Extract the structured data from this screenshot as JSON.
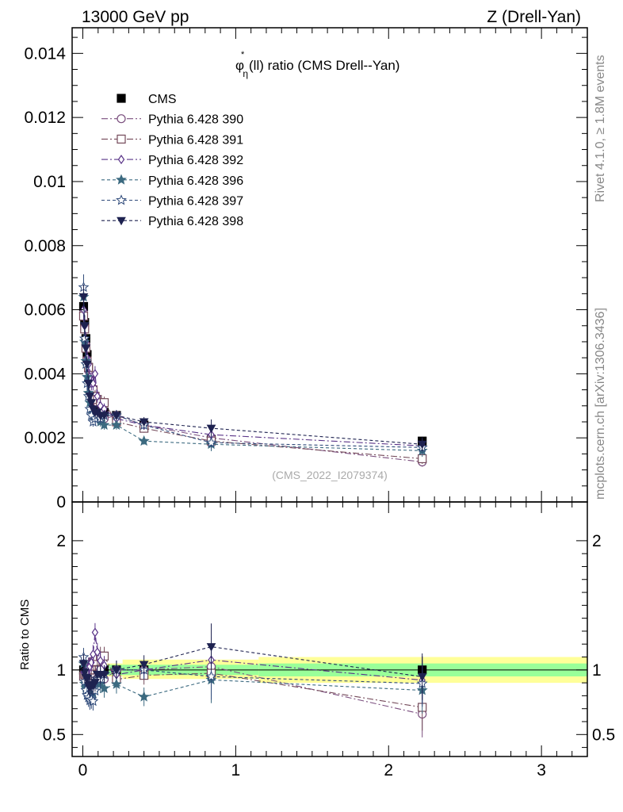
{
  "header": {
    "left": "13000 GeV pp",
    "right": "Z (Drell-Yan)"
  },
  "side_labels": {
    "rivet": "Rivet 4.1.0, ≥ 1.8M events",
    "mcplots": "mcplots.cern.ch [arXiv:1306.3436]"
  },
  "plot_title": {
    "sym": "φ",
    "sup": "*",
    "sub": "η",
    "rest": "(ll) ratio (CMS Drell--Yan)"
  },
  "watermark": "(CMS_2022_I2079374)",
  "ratio_ylabel": "Ratio to CMS",
  "chart_data": {
    "type": "scatter",
    "xlim": [
      -0.07,
      3.3
    ],
    "main": {
      "ylim": [
        0,
        0.0148
      ],
      "yticks": [
        {
          "v": 0,
          "label": "0"
        },
        {
          "v": 0.002,
          "label": "0.002"
        },
        {
          "v": 0.004,
          "label": "0.004"
        },
        {
          "v": 0.006,
          "label": "0.006"
        },
        {
          "v": 0.008,
          "label": "0.008"
        },
        {
          "v": 0.01,
          "label": "0.01"
        },
        {
          "v": 0.012,
          "label": "0.012"
        },
        {
          "v": 0.014,
          "label": "0.014"
        }
      ]
    },
    "ratio": {
      "ylim": [
        0.33,
        2.3
      ],
      "yticks": [
        {
          "v": 0.5,
          "label": "0.5"
        },
        {
          "v": 1,
          "label": "1"
        },
        {
          "v": 2,
          "label": "2"
        }
      ],
      "bands": [
        {
          "x0": 0,
          "x1": 0.26,
          "y_in": [
            0.96,
            1.04
          ],
          "y_out": [
            0.95,
            1.05
          ]
        },
        {
          "x0": 0.26,
          "x1": 1.15,
          "y_in": [
            0.96,
            1.04
          ],
          "y_out": [
            0.93,
            1.08
          ]
        },
        {
          "x0": 1.15,
          "x1": 3.3,
          "y_in": [
            0.95,
            1.05
          ],
          "y_out": [
            0.9,
            1.1
          ]
        }
      ]
    },
    "xticks": [
      {
        "v": 0,
        "label": "0"
      },
      {
        "v": 1,
        "label": "1"
      },
      {
        "v": 2,
        "label": "2"
      },
      {
        "v": 3,
        "label": "3"
      }
    ],
    "x": [
      0.005,
      0.012,
      0.02,
      0.028,
      0.037,
      0.046,
      0.056,
      0.067,
      0.08,
      0.095,
      0.115,
      0.14,
      0.22,
      0.4,
      0.84,
      2.22
    ],
    "series": [
      {
        "name": "CMS",
        "color": "#000000",
        "marker": "square-filled",
        "dash": "",
        "values": [
          0.0061,
          0.0056,
          0.0051,
          0.0046,
          0.0042,
          0.0038,
          0.0035,
          0.0033,
          0.0031,
          0.0029,
          0.0028,
          0.0028,
          0.0027,
          0.0024,
          0.00195,
          0.0019
        ]
      },
      {
        "name": "Pythia 6.428 390",
        "color": "#7a4e7e",
        "marker": "circle-open",
        "dash": "8,3,2,3",
        "values": [
          0.0059,
          0.0054,
          0.0049,
          0.0044,
          0.0041,
          0.0037,
          0.0034,
          0.0034,
          0.0032,
          0.0031,
          0.0028,
          0.0026,
          0.0027,
          0.0024,
          0.002,
          0.00125
        ]
      },
      {
        "name": "Pythia 6.428 391",
        "color": "#744a5a",
        "marker": "square-open",
        "dash": "8,3,2,3",
        "values": [
          0.0058,
          0.0054,
          0.0048,
          0.0044,
          0.0042,
          0.0038,
          0.0036,
          0.0035,
          0.0033,
          0.0032,
          0.0031,
          0.0031,
          0.0025,
          0.0023,
          0.0019,
          0.00135
        ]
      },
      {
        "name": "Pythia 6.428 392",
        "color": "#5a3488",
        "marker": "diamond-open",
        "dash": "8,3,2,3",
        "values": [
          0.006,
          0.0055,
          0.005,
          0.0045,
          0.0043,
          0.0039,
          0.0037,
          0.0037,
          0.004,
          0.0033,
          0.003,
          0.0029,
          0.0026,
          0.0024,
          0.0021,
          0.00175
        ]
      },
      {
        "name": "Pythia 6.428 396",
        "color": "#3c6a80",
        "marker": "star-filled",
        "dash": "4,3",
        "values": [
          0.0064,
          0.005,
          0.0044,
          0.0039,
          0.0034,
          0.0031,
          0.0029,
          0.0027,
          0.0026,
          0.0026,
          0.0025,
          0.0024,
          0.0024,
          0.0019,
          0.0018,
          0.0016
        ]
      },
      {
        "name": "Pythia 6.428 397",
        "color": "#2f4a7a",
        "marker": "star-open",
        "dash": "4,3",
        "values": [
          0.0067,
          0.0051,
          0.0043,
          0.0037,
          0.0033,
          0.0029,
          0.0027,
          0.0025,
          0.0026,
          0.0027,
          0.0026,
          0.0027,
          0.0027,
          0.0024,
          0.00185,
          0.0017
        ]
      },
      {
        "name": "Pythia 6.428 398",
        "color": "#1e2250",
        "marker": "triangle-down-filled",
        "dash": "4,3",
        "values": [
          0.0064,
          0.0055,
          0.0048,
          0.0043,
          0.0037,
          0.0033,
          0.0031,
          0.0029,
          0.0028,
          0.0028,
          0.0027,
          0.0027,
          0.0027,
          0.0025,
          0.0023,
          0.0018
        ]
      }
    ]
  }
}
